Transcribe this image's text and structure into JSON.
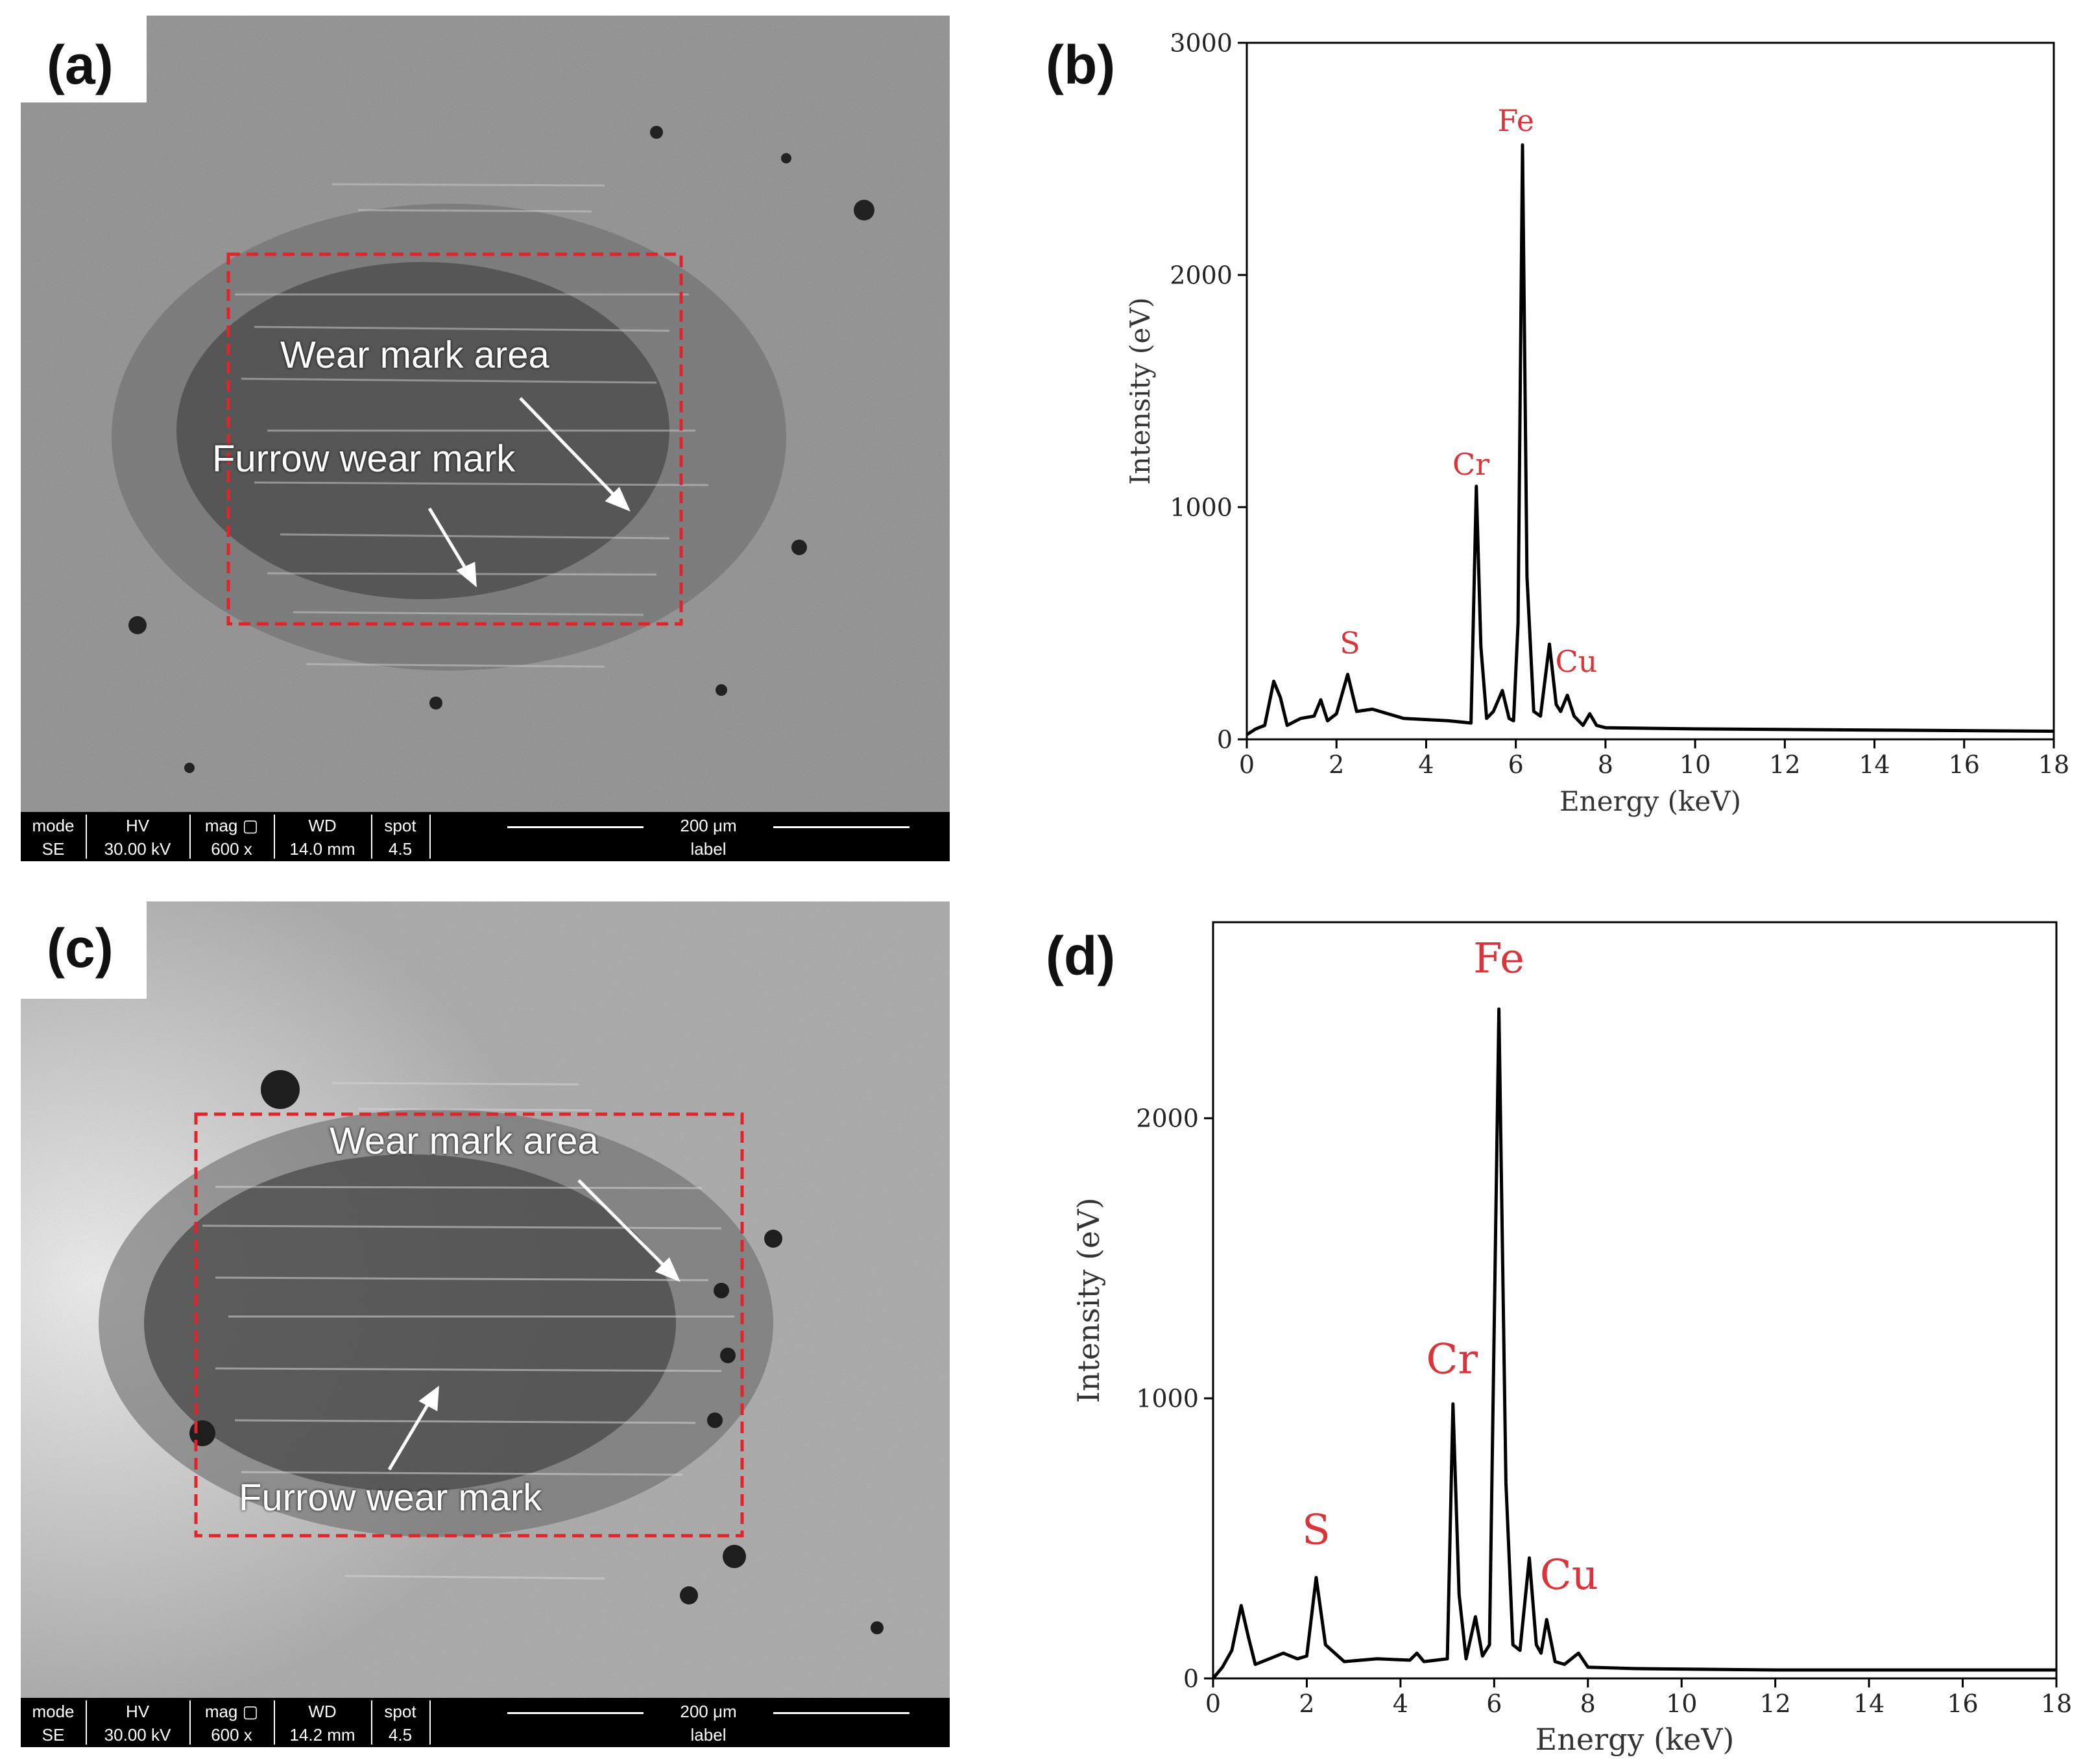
{
  "panels": {
    "a": {
      "letter": "(a)",
      "labels": {
        "wear_area": "Wear mark area",
        "furrow": "Furrow wear mark"
      },
      "databar": {
        "headers": [
          "mode",
          "HV",
          "mag ▢",
          "WD",
          "spot"
        ],
        "values": [
          "SE",
          "30.00 kV",
          "600 x",
          "14.0 mm",
          "4.5"
        ],
        "scale": "200 μm",
        "label": "label"
      }
    },
    "b": {
      "letter": "(b)"
    },
    "c": {
      "letter": "(c)",
      "labels": {
        "wear_area": "Wear mark area",
        "furrow": "Furrow wear mark"
      },
      "databar": {
        "headers": [
          "mode",
          "HV",
          "mag ▢",
          "WD",
          "spot"
        ],
        "values": [
          "SE",
          "30.00 kV",
          "600 x",
          "14.2 mm",
          "4.5"
        ],
        "scale": "200 μm",
        "label": "label"
      }
    },
    "d": {
      "letter": "(d)"
    }
  },
  "colors": {
    "peak_label": "#d9343a",
    "dashed_box": "#e0242a",
    "spectrum": "#000000"
  },
  "chart_data": [
    {
      "type": "line",
      "panel": "b",
      "xlabel": "Energy (keV)",
      "ylabel": "Intensity (eV)",
      "xlim": [
        0,
        18
      ],
      "ylim": [
        0,
        3000
      ],
      "xticks": [
        0,
        2,
        4,
        6,
        8,
        10,
        12,
        14,
        16,
        18
      ],
      "yticks": [
        0,
        1000,
        2000,
        3000
      ],
      "series": [
        {
          "x": [
            0,
            0.2,
            0.4,
            0.6,
            0.75,
            0.9,
            1.2,
            1.5,
            1.65,
            1.8,
            2.0,
            2.25,
            2.45,
            2.8,
            3.5,
            4.5,
            5.0,
            5.12,
            5.22,
            5.35,
            5.5,
            5.7,
            5.85,
            5.95,
            6.05,
            6.15,
            6.25,
            6.4,
            6.55,
            6.75,
            6.9,
            7.0,
            7.15,
            7.3,
            7.5,
            7.65,
            7.8,
            8.0,
            10,
            14,
            18
          ],
          "y": [
            20,
            45,
            60,
            250,
            180,
            60,
            90,
            100,
            170,
            80,
            110,
            280,
            120,
            130,
            90,
            80,
            70,
            1090,
            400,
            90,
            120,
            210,
            90,
            80,
            500,
            2560,
            700,
            120,
            100,
            410,
            150,
            120,
            190,
            100,
            60,
            110,
            60,
            50,
            45,
            40,
            35
          ]
        }
      ],
      "annotations": [
        {
          "text": "S",
          "x": 2.3,
          "y": 370
        },
        {
          "text": "Cr",
          "x": 5.0,
          "y": 1140
        },
        {
          "text": "Fe",
          "x": 6.0,
          "y": 2620
        },
        {
          "text": "Cu",
          "x": 7.35,
          "y": 290
        }
      ]
    },
    {
      "type": "line",
      "panel": "d",
      "xlabel": "Energy (keV)",
      "ylabel": "Intensity (eV)",
      "xlim": [
        0,
        18
      ],
      "ylim": [
        0,
        2700
      ],
      "xticks": [
        0,
        2,
        4,
        6,
        8,
        10,
        12,
        14,
        16,
        18
      ],
      "yticks": [
        0,
        1000,
        2000
      ],
      "series": [
        {
          "x": [
            0,
            0.2,
            0.4,
            0.6,
            0.75,
            0.9,
            1.2,
            1.5,
            1.8,
            2.0,
            2.2,
            2.4,
            2.8,
            3.5,
            4.2,
            4.35,
            4.5,
            5.0,
            5.12,
            5.25,
            5.4,
            5.6,
            5.75,
            5.9,
            6.1,
            6.25,
            6.4,
            6.55,
            6.75,
            6.9,
            7.0,
            7.12,
            7.3,
            7.5,
            7.8,
            8.0,
            9,
            12,
            18
          ],
          "y": [
            0,
            40,
            100,
            260,
            150,
            50,
            70,
            90,
            70,
            80,
            360,
            120,
            60,
            70,
            65,
            90,
            60,
            70,
            980,
            300,
            70,
            220,
            80,
            120,
            2390,
            700,
            120,
            100,
            430,
            120,
            90,
            210,
            60,
            50,
            90,
            40,
            35,
            30,
            30
          ]
        }
      ],
      "annotations": [
        {
          "text": "S",
          "x": 2.2,
          "y": 480
        },
        {
          "text": "Cr",
          "x": 5.1,
          "y": 1090
        },
        {
          "text": "Fe",
          "x": 6.1,
          "y": 2520
        },
        {
          "text": "Cu",
          "x": 7.6,
          "y": 320
        }
      ]
    }
  ]
}
